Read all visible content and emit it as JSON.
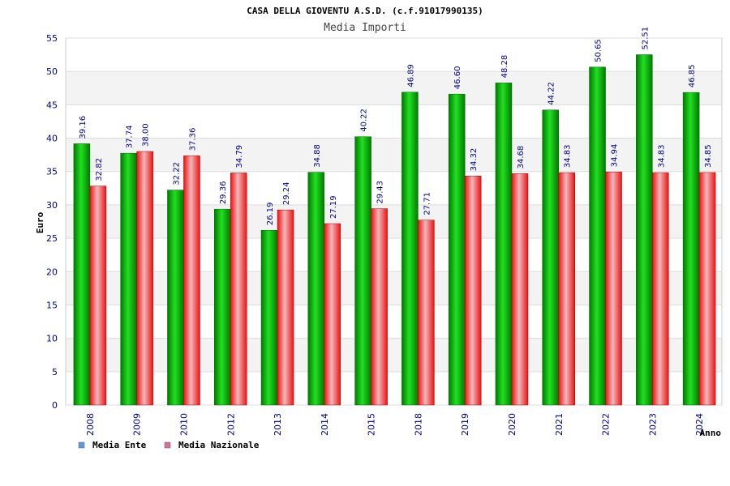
{
  "chart_data": {
    "type": "bar",
    "title": "CASA DELLA GIOVENTU A.S.D. (c.f.91017990135)",
    "subtitle": "Media Importi",
    "xlabel": "Anno",
    "ylabel": "Euro",
    "ylim": [
      0,
      55
    ],
    "ytick_step": 5,
    "grid": true,
    "legend_position": "bottom-left",
    "categories": [
      "2008",
      "2009",
      "2010",
      "2012",
      "2013",
      "2014",
      "2015",
      "2018",
      "2019",
      "2020",
      "2021",
      "2022",
      "2023",
      "2024"
    ],
    "series": [
      {
        "name": "Media Ente",
        "legend_color": "#5b9bd5",
        "bar_color": "#00b400",
        "values": [
          39.16,
          37.74,
          32.22,
          29.36,
          26.19,
          34.88,
          40.22,
          46.89,
          46.6,
          48.28,
          44.22,
          50.65,
          52.51,
          46.85
        ],
        "labels": [
          "39.16",
          "37.74",
          "32.22",
          "29.36",
          "26.19",
          "34.88",
          "40.22",
          "46.89",
          "46.60",
          "48.28",
          "44.22",
          "50.65",
          "52.51",
          "46.85"
        ]
      },
      {
        "name": "Media Nazionale",
        "legend_color": "#d4709a",
        "bar_color": "#e8202a",
        "values": [
          32.82,
          38.0,
          37.36,
          34.79,
          29.24,
          27.19,
          29.43,
          27.71,
          34.32,
          34.68,
          34.83,
          34.94,
          34.83,
          34.85
        ],
        "labels": [
          "32.82",
          "38.00",
          "37.36",
          "34.79",
          "29.24",
          "27.19",
          "29.43",
          "27.71",
          "34.32",
          "34.68",
          "34.83",
          "34.94",
          "34.83",
          "34.85"
        ]
      }
    ]
  }
}
